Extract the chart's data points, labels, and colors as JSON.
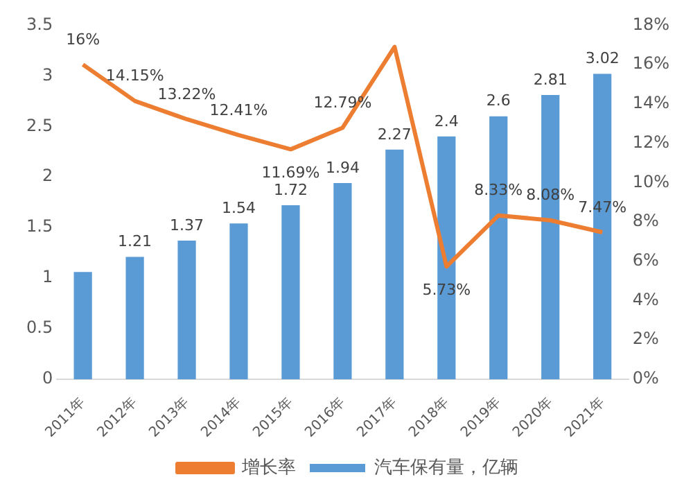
{
  "chart_data": {
    "type": "bar",
    "categories": [
      "2011年",
      "2012年",
      "2013年",
      "2014年",
      "2015年",
      "2016年",
      "2017年",
      "2018年",
      "2019年",
      "2020年",
      "2021年"
    ],
    "series": [
      {
        "name": "汽车保有量，亿辆",
        "color": "#5b9bd5",
        "values": [
          1.06,
          1.21,
          1.37,
          1.54,
          1.72,
          1.94,
          2.27,
          2.4,
          2.6,
          2.81,
          3.02
        ],
        "value_labels": [
          null,
          "1.21",
          "1.37",
          "1.54",
          "1.72",
          "1.94",
          "2.27",
          "2.4",
          "2.6",
          "2.81",
          "3.02"
        ]
      },
      {
        "name": "增长率",
        "type": "line",
        "axis": "y2",
        "color": "#ed7d31",
        "values": [
          16,
          14.15,
          13.22,
          12.41,
          11.69,
          12.79,
          16.9,
          5.73,
          8.33,
          8.08,
          7.47
        ],
        "value_labels": [
          "16%",
          "14.15%",
          "13.22%",
          "12.41%",
          "11.69%",
          "12.79%",
          null,
          "5.73%",
          "8.33%",
          "8.08%",
          "7.47%"
        ]
      }
    ],
    "ylim": [
      0,
      3.5
    ],
    "yticks": [
      0,
      0.5,
      1,
      1.5,
      2,
      2.5,
      3,
      3.5
    ],
    "y2lim": [
      0,
      18
    ],
    "y2ticks": [
      {
        "value": 0,
        "label": "0%"
      },
      {
        "value": 2,
        "label": "2%"
      },
      {
        "value": 4,
        "label": "4%"
      },
      {
        "value": 6,
        "label": "6%"
      },
      {
        "value": 8,
        "label": "8%"
      },
      {
        "value": 10,
        "label": "10%"
      },
      {
        "value": 12,
        "label": "12%"
      },
      {
        "value": 14,
        "label": "14%"
      },
      {
        "value": 16,
        "label": "16%"
      },
      {
        "value": 18,
        "label": "18%"
      }
    ],
    "grid": false,
    "legend": "bottom",
    "marker": "none",
    "line_style": "solid"
  }
}
